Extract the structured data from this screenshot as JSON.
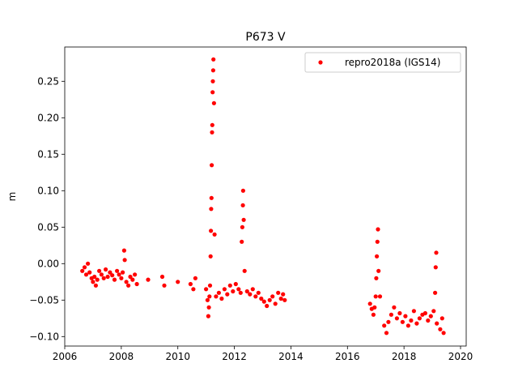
{
  "chart_data": {
    "type": "scatter",
    "title": "P673 V",
    "xlabel": "",
    "ylabel": "m",
    "xlim": [
      2006.0,
      2020.2
    ],
    "ylim": [
      -0.113,
      0.297
    ],
    "xticks": [
      2006,
      2008,
      2010,
      2012,
      2014,
      2016,
      2018,
      2020
    ],
    "xtick_labels": [
      "2006",
      "2008",
      "2010",
      "2012",
      "2014",
      "2016",
      "2018",
      "2020"
    ],
    "yticks": [
      -0.1,
      -0.05,
      0.0,
      0.05,
      0.1,
      0.15,
      0.2,
      0.25
    ],
    "ytick_labels": [
      "−0.10",
      "−0.05",
      "0.00",
      "0.05",
      "0.10",
      "0.15",
      "0.20",
      "0.25"
    ],
    "grid": false,
    "legend_position": "top-right",
    "series": [
      {
        "name": "repro2018a (IGS14)",
        "color": "#ff0000",
        "marker": "circle",
        "points": [
          [
            2006.62,
            -0.01
          ],
          [
            2006.7,
            -0.005
          ],
          [
            2006.76,
            -0.015
          ],
          [
            2006.82,
            0.0
          ],
          [
            2006.88,
            -0.012
          ],
          [
            2006.95,
            -0.02
          ],
          [
            2007.0,
            -0.025
          ],
          [
            2007.05,
            -0.018
          ],
          [
            2007.1,
            -0.03
          ],
          [
            2007.15,
            -0.022
          ],
          [
            2007.22,
            -0.01
          ],
          [
            2007.3,
            -0.015
          ],
          [
            2007.38,
            -0.02
          ],
          [
            2007.45,
            -0.008
          ],
          [
            2007.52,
            -0.018
          ],
          [
            2007.6,
            -0.012
          ],
          [
            2007.68,
            -0.016
          ],
          [
            2007.76,
            -0.022
          ],
          [
            2007.85,
            -0.01
          ],
          [
            2007.92,
            -0.015
          ],
          [
            2008.0,
            -0.02
          ],
          [
            2008.05,
            -0.012
          ],
          [
            2008.1,
            0.018
          ],
          [
            2008.12,
            0.005
          ],
          [
            2008.18,
            -0.025
          ],
          [
            2008.25,
            -0.03
          ],
          [
            2008.32,
            -0.018
          ],
          [
            2008.4,
            -0.022
          ],
          [
            2008.48,
            -0.015
          ],
          [
            2008.55,
            -0.028
          ],
          [
            2008.95,
            -0.022
          ],
          [
            2009.45,
            -0.018
          ],
          [
            2009.52,
            -0.03
          ],
          [
            2010.0,
            -0.025
          ],
          [
            2010.45,
            -0.028
          ],
          [
            2010.55,
            -0.035
          ],
          [
            2010.62,
            -0.02
          ],
          [
            2011.0,
            -0.035
          ],
          [
            2011.05,
            -0.05
          ],
          [
            2011.08,
            -0.072
          ],
          [
            2011.1,
            -0.06
          ],
          [
            2011.12,
            -0.045
          ],
          [
            2011.14,
            -0.03
          ],
          [
            2011.16,
            0.01
          ],
          [
            2011.17,
            0.045
          ],
          [
            2011.18,
            0.075
          ],
          [
            2011.19,
            0.09
          ],
          [
            2011.2,
            0.135
          ],
          [
            2011.21,
            0.18
          ],
          [
            2011.22,
            0.19
          ],
          [
            2011.23,
            0.235
          ],
          [
            2011.24,
            0.25
          ],
          [
            2011.25,
            0.265
          ],
          [
            2011.26,
            0.28
          ],
          [
            2011.28,
            0.22
          ],
          [
            2011.3,
            0.04
          ],
          [
            2011.35,
            -0.045
          ],
          [
            2011.45,
            -0.04
          ],
          [
            2011.55,
            -0.048
          ],
          [
            2011.65,
            -0.035
          ],
          [
            2011.75,
            -0.042
          ],
          [
            2011.85,
            -0.03
          ],
          [
            2011.95,
            -0.038
          ],
          [
            2012.05,
            -0.028
          ],
          [
            2012.15,
            -0.035
          ],
          [
            2012.22,
            -0.04
          ],
          [
            2012.26,
            0.03
          ],
          [
            2012.28,
            0.05
          ],
          [
            2012.3,
            0.08
          ],
          [
            2012.31,
            0.1
          ],
          [
            2012.33,
            0.06
          ],
          [
            2012.36,
            -0.01
          ],
          [
            2012.45,
            -0.038
          ],
          [
            2012.55,
            -0.042
          ],
          [
            2012.65,
            -0.035
          ],
          [
            2012.75,
            -0.045
          ],
          [
            2012.85,
            -0.04
          ],
          [
            2012.95,
            -0.048
          ],
          [
            2013.05,
            -0.052
          ],
          [
            2013.15,
            -0.058
          ],
          [
            2013.25,
            -0.05
          ],
          [
            2013.35,
            -0.045
          ],
          [
            2013.45,
            -0.055
          ],
          [
            2013.55,
            -0.04
          ],
          [
            2013.65,
            -0.048
          ],
          [
            2013.72,
            -0.042
          ],
          [
            2013.78,
            -0.05
          ],
          [
            2016.8,
            -0.055
          ],
          [
            2016.86,
            -0.062
          ],
          [
            2016.92,
            -0.07
          ],
          [
            2016.96,
            -0.06
          ],
          [
            2017.0,
            -0.045
          ],
          [
            2017.02,
            -0.02
          ],
          [
            2017.04,
            0.01
          ],
          [
            2017.06,
            0.03
          ],
          [
            2017.08,
            0.047
          ],
          [
            2017.1,
            -0.01
          ],
          [
            2017.15,
            -0.045
          ],
          [
            2017.3,
            -0.085
          ],
          [
            2017.38,
            -0.095
          ],
          [
            2017.45,
            -0.08
          ],
          [
            2017.55,
            -0.07
          ],
          [
            2017.65,
            -0.06
          ],
          [
            2017.75,
            -0.075
          ],
          [
            2017.85,
            -0.068
          ],
          [
            2017.95,
            -0.08
          ],
          [
            2018.05,
            -0.072
          ],
          [
            2018.15,
            -0.085
          ],
          [
            2018.25,
            -0.078
          ],
          [
            2018.35,
            -0.065
          ],
          [
            2018.45,
            -0.082
          ],
          [
            2018.55,
            -0.075
          ],
          [
            2018.65,
            -0.07
          ],
          [
            2018.75,
            -0.068
          ],
          [
            2018.85,
            -0.078
          ],
          [
            2018.95,
            -0.072
          ],
          [
            2019.05,
            -0.065
          ],
          [
            2019.1,
            -0.04
          ],
          [
            2019.12,
            -0.005
          ],
          [
            2019.14,
            0.015
          ],
          [
            2019.16,
            -0.082
          ],
          [
            2019.28,
            -0.09
          ],
          [
            2019.35,
            -0.075
          ],
          [
            2019.4,
            -0.095
          ]
        ]
      }
    ]
  }
}
